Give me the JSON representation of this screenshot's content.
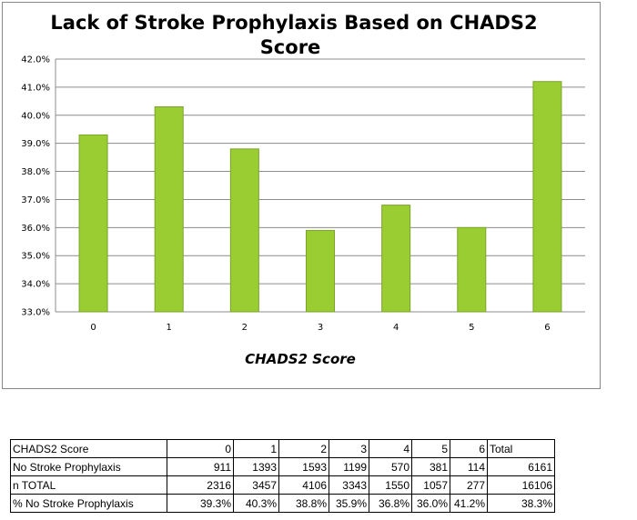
{
  "chart_data": {
    "type": "bar",
    "title_lines": [
      "Lack of Stroke Prophylaxis Based on CHADS2",
      "Score"
    ],
    "xlabel": "CHADS2 Score",
    "ylabel": "",
    "categories": [
      "0",
      "1",
      "2",
      "3",
      "4",
      "5",
      "6"
    ],
    "values": [
      39.3,
      40.3,
      38.8,
      35.9,
      36.8,
      36.0,
      41.2
    ],
    "ylim": [
      33.0,
      42.0
    ],
    "y_ticks": [
      "33.0%",
      "34.0%",
      "35.0%",
      "36.0%",
      "37.0%",
      "38.0%",
      "39.0%",
      "40.0%",
      "41.0%",
      "42.0%"
    ],
    "grid": true,
    "legend": "none",
    "bar_color": "#9ACD32",
    "bar_edge_color": "#7BA428"
  },
  "table": {
    "rows": [
      [
        "CHADS2 Score",
        "0",
        "1",
        "2",
        "3",
        "4",
        "5",
        "6",
        "Total"
      ],
      [
        "No Stroke Prophylaxis",
        "911",
        "1393",
        "1593",
        "1199",
        "570",
        "381",
        "114",
        "6161"
      ],
      [
        "n TOTAL",
        "2316",
        "3457",
        "4106",
        "3343",
        "1550",
        "1057",
        "277",
        "16106"
      ],
      [
        "% No Stroke Prophylaxis",
        "39.3%",
        "40.3%",
        "38.8%",
        "35.9%",
        "36.8%",
        "36.0%",
        "41.2%",
        "38.3%"
      ]
    ]
  }
}
